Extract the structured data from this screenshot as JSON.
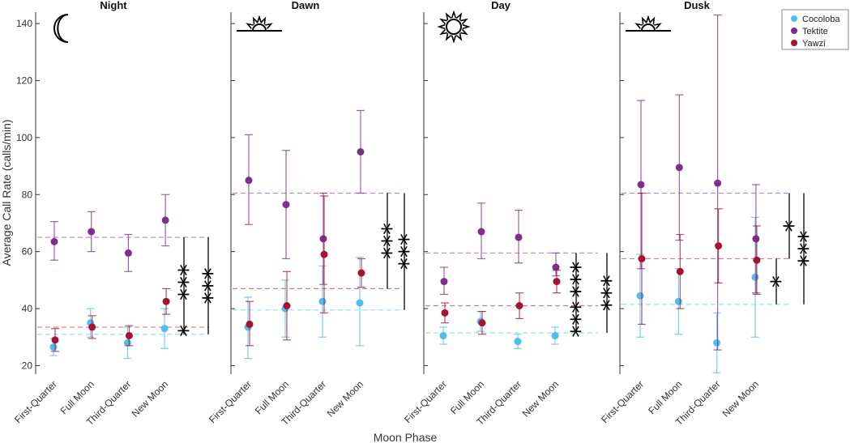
{
  "chart_data": {
    "type": "scatter",
    "xlabel": "Moon Phase",
    "ylabel": "Average Call Rate (calls/min)",
    "ylim": [
      17,
      144
    ],
    "yticks": [
      20,
      40,
      60,
      80,
      100,
      120,
      140
    ],
    "categories": [
      "First-Quarter",
      "Full Moon",
      "Third-Quarter",
      "New Moon"
    ],
    "series": [
      {
        "name": "Cocoloba",
        "color": "#4DBEEE"
      },
      {
        "name": "Tektite",
        "color": "#7E2F8E"
      },
      {
        "name": "Yawzi",
        "color": "#A2142F"
      }
    ],
    "panels": [
      {
        "title": "Night",
        "icon": "moon-icon",
        "means": {
          "Cocoloba": 31,
          "Tektite": 65,
          "Yawzi": 33.5
        },
        "data": {
          "Cocoloba": [
            {
              "y": 26.5,
              "lo": 23.5,
              "hi": 29.5
            },
            {
              "y": 35,
              "lo": 30,
              "hi": 40
            },
            {
              "y": 28,
              "lo": 22.5,
              "hi": 33.5
            },
            {
              "y": 33,
              "lo": 26,
              "hi": 40
            }
          ],
          "Tektite": [
            {
              "y": 63.5,
              "lo": 57,
              "hi": 70.5
            },
            {
              "y": 67,
              "lo": 60,
              "hi": 74
            },
            {
              "y": 59.5,
              "lo": 53,
              "hi": 66
            },
            {
              "y": 71,
              "lo": 62,
              "hi": 80
            }
          ],
          "Yawzi": [
            {
              "y": 29,
              "lo": 25,
              "hi": 33
            },
            {
              "y": 33.5,
              "lo": 29.5,
              "hi": 37.5
            },
            {
              "y": 30.5,
              "lo": 27,
              "hi": 34
            },
            {
              "y": 42.5,
              "lo": 38,
              "hi": 47
            }
          ]
        },
        "sig": [
          {
            "label": "*",
            "top": 33.5,
            "bottom": 31,
            "col": 0
          },
          {
            "label": "***",
            "top": 65,
            "bottom": 33.5,
            "col": 0
          },
          {
            "label": "***",
            "top": 65,
            "bottom": 31,
            "col": 1
          }
        ]
      },
      {
        "title": "Dawn",
        "icon": "sunrise-icon",
        "means": {
          "Cocoloba": 39.5,
          "Tektite": 80.5,
          "Yawzi": 47
        },
        "data": {
          "Cocoloba": [
            {
              "y": 33.5,
              "lo": 22.5,
              "hi": 44
            },
            {
              "y": 40,
              "lo": 30,
              "hi": 50
            },
            {
              "y": 42.5,
              "lo": 30,
              "hi": 55
            },
            {
              "y": 42,
              "lo": 27,
              "hi": 58
            }
          ],
          "Tektite": [
            {
              "y": 85,
              "lo": 69.5,
              "hi": 101
            },
            {
              "y": 76.5,
              "lo": 57.5,
              "hi": 95.5
            },
            {
              "y": 64.5,
              "lo": 48.5,
              "hi": 80.5
            },
            {
              "y": 95,
              "lo": 80.5,
              "hi": 109.5
            }
          ],
          "Yawzi": [
            {
              "y": 34.5,
              "lo": 27,
              "hi": 42.5
            },
            {
              "y": 41,
              "lo": 29,
              "hi": 53
            },
            {
              "y": 59,
              "lo": 38.5,
              "hi": 79.5
            },
            {
              "y": 52.5,
              "lo": 47.5,
              "hi": 57.5
            }
          ]
        },
        "sig": [
          {
            "label": "***",
            "top": 80.5,
            "bottom": 47,
            "col": 0
          },
          {
            "label": "***",
            "top": 80.5,
            "bottom": 39.5,
            "col": 1
          }
        ]
      },
      {
        "title": "Day",
        "icon": "sun-icon",
        "means": {
          "Cocoloba": 31.5,
          "Tektite": 59.5,
          "Yawzi": 41
        },
        "data": {
          "Cocoloba": [
            {
              "y": 30.5,
              "lo": 27.5,
              "hi": 33.5
            },
            {
              "y": 35.5,
              "lo": 32,
              "hi": 39
            },
            {
              "y": 28.5,
              "lo": 26,
              "hi": 31
            },
            {
              "y": 30.5,
              "lo": 27.5,
              "hi": 33.5
            }
          ],
          "Tektite": [
            {
              "y": 49.5,
              "lo": 45,
              "hi": 54.5
            },
            {
              "y": 67,
              "lo": 57.5,
              "hi": 77
            },
            {
              "y": 65,
              "lo": 56,
              "hi": 74.5
            },
            {
              "y": 54.5,
              "lo": 51.5,
              "hi": 59.5
            }
          ],
          "Yawzi": [
            {
              "y": 38.5,
              "lo": 35,
              "hi": 42
            },
            {
              "y": 35,
              "lo": 31,
              "hi": 39
            },
            {
              "y": 41,
              "lo": 36.5,
              "hi": 45.5
            },
            {
              "y": 49.5,
              "lo": 45.5,
              "hi": 53.5
            }
          ]
        },
        "sig": [
          {
            "label": "***",
            "top": 41,
            "bottom": 31.5,
            "col": 0
          },
          {
            "label": "***",
            "top": 59.5,
            "bottom": 41,
            "col": 0
          },
          {
            "label": "***",
            "top": 59.5,
            "bottom": 31.5,
            "col": 1
          }
        ]
      },
      {
        "title": "Dusk",
        "icon": "sunset-icon",
        "means": {
          "Cocoloba": 41.5,
          "Tektite": 80.5,
          "Yawzi": 57.5
        },
        "data": {
          "Cocoloba": [
            {
              "y": 44.5,
              "lo": 30,
              "hi": 59
            },
            {
              "y": 42.5,
              "lo": 31,
              "hi": 54
            },
            {
              "y": 28,
              "lo": 17.5,
              "hi": 38.5
            },
            {
              "y": 51,
              "lo": 30,
              "hi": 72
            }
          ],
          "Tektite": [
            {
              "y": 83.5,
              "lo": 54,
              "hi": 113
            },
            {
              "y": 89.5,
              "lo": 64,
              "hi": 115
            },
            {
              "y": 84,
              "lo": 25.5,
              "hi": 143
            },
            {
              "y": 64.5,
              "lo": 45.5,
              "hi": 83.5
            }
          ],
          "Yawzi": [
            {
              "y": 57.5,
              "lo": 34.5,
              "hi": 80.5
            },
            {
              "y": 53,
              "lo": 40,
              "hi": 66
            },
            {
              "y": 62,
              "lo": 49,
              "hi": 75
            },
            {
              "y": 57,
              "lo": 45,
              "hi": 69
            }
          ]
        },
        "sig": [
          {
            "label": "*",
            "top": 80.5,
            "bottom": 57.5,
            "col": 0
          },
          {
            "label": "*",
            "top": 57.5,
            "bottom": 41.5,
            "col": -1
          },
          {
            "label": "***",
            "top": 80.5,
            "bottom": 41.5,
            "col": 1
          }
        ]
      }
    ]
  }
}
